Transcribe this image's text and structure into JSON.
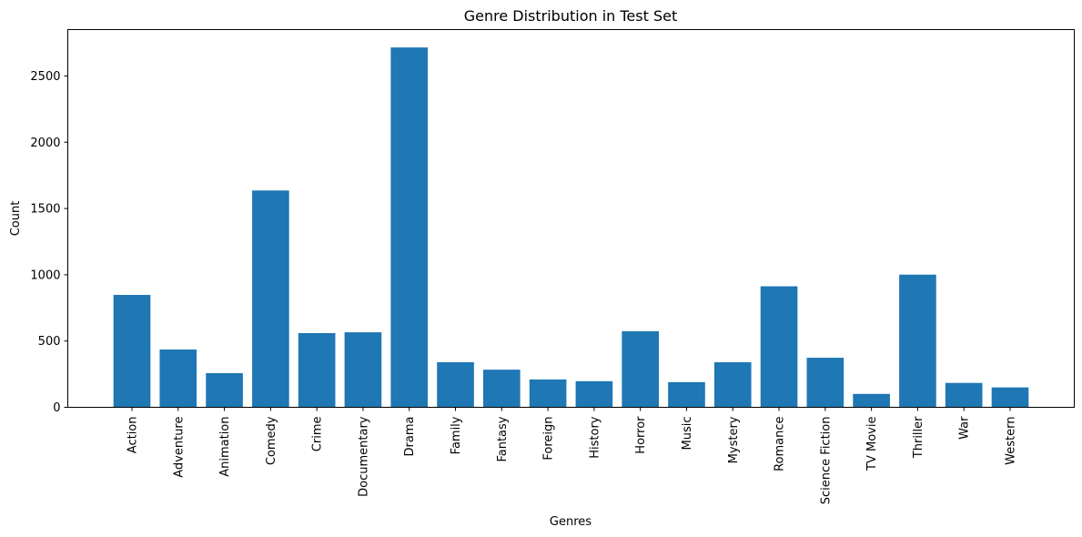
{
  "chart_data": {
    "type": "bar",
    "title": "Genre Distribution in Test Set",
    "xlabel": "Genres",
    "ylabel": "Count",
    "categories": [
      "Action",
      "Adventure",
      "Animation",
      "Comedy",
      "Crime",
      "Documentary",
      "Drama",
      "Family",
      "Fantasy",
      "Foreign",
      "History",
      "Horror",
      "Music",
      "Mystery",
      "Romance",
      "Science Fiction",
      "TV Movie",
      "Thriller",
      "War",
      "Western"
    ],
    "values": [
      848,
      436,
      258,
      1636,
      560,
      566,
      2715,
      340,
      284,
      210,
      197,
      574,
      190,
      340,
      913,
      374,
      101,
      1001,
      184,
      150
    ],
    "yticks": [
      0,
      500,
      1000,
      1500,
      2000,
      2500
    ],
    "ylim": [
      0,
      2850
    ],
    "grid": false,
    "legend": "none",
    "colors": {
      "bar": "#1f77b4"
    }
  }
}
